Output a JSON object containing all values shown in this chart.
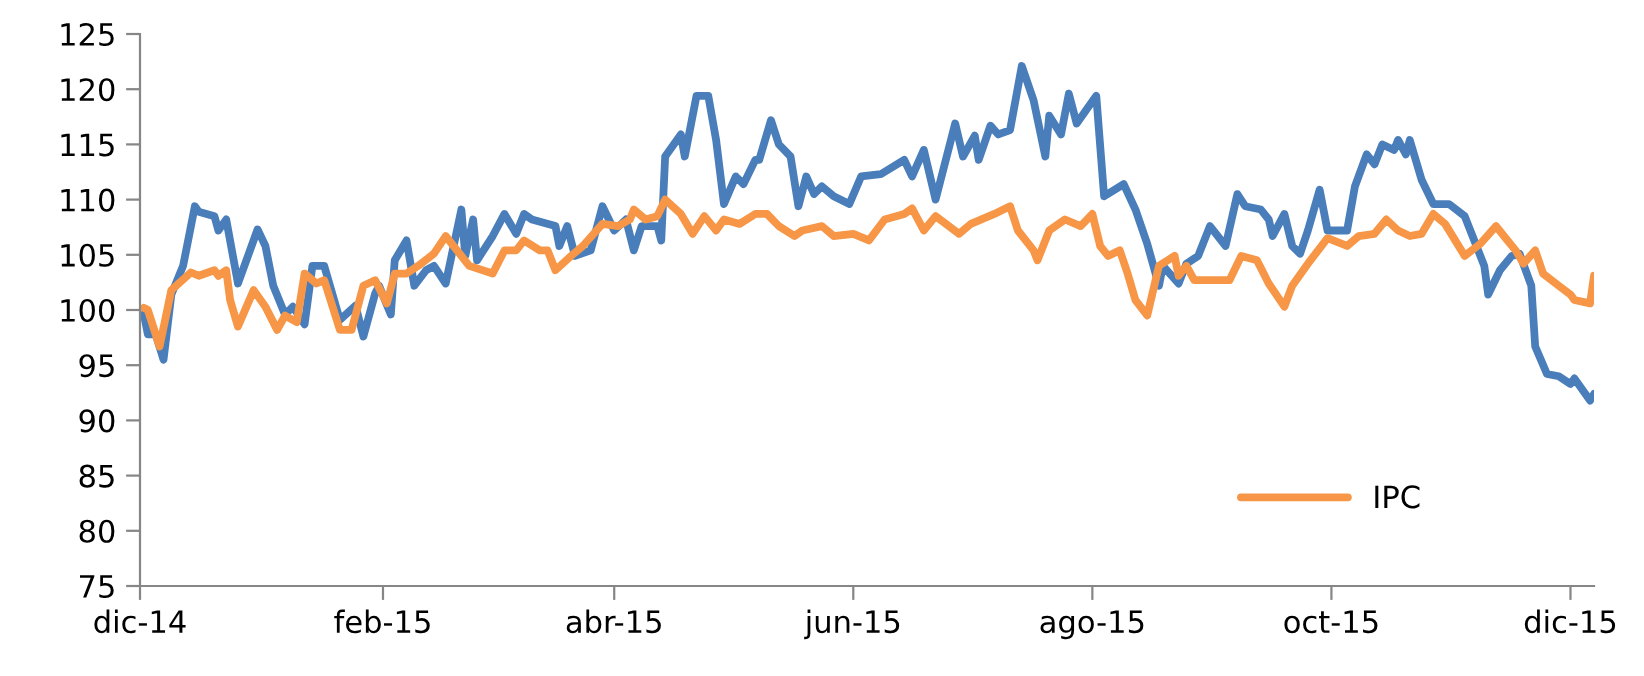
{
  "chart_data": {
    "type": "line",
    "legend": "bottom right",
    "grid": false,
    "marker": "none",
    "line_style": "solid",
    "xlim": [
      "2014-12-01",
      "2015-12-07"
    ],
    "xticks": [
      {
        "value": "2014-12-01",
        "label": "dic-14"
      },
      {
        "value": "2015-02-01",
        "label": "feb-15"
      },
      {
        "value": "2015-04-01",
        "label": "abr-15"
      },
      {
        "value": "2015-06-01",
        "label": "jun-15"
      },
      {
        "value": "2015-08-01",
        "label": "ago-15"
      },
      {
        "value": "2015-10-01",
        "label": "oct-15"
      },
      {
        "value": "2015-12-01",
        "label": "dic-15"
      }
    ],
    "ylim": [
      75,
      125
    ],
    "yticks": [
      75,
      80,
      85,
      90,
      95,
      100,
      105,
      110,
      115,
      120,
      125
    ],
    "series": [
      {
        "color": "#4a7ebb",
        "x": [
          "2014-12-02",
          "2014-12-03",
          "2014-12-05",
          "2014-12-07",
          "2014-12-09",
          "2014-12-12",
          "2014-12-15",
          "2014-12-16",
          "2014-12-20",
          "2014-12-21",
          "2014-12-23",
          "2014-12-26",
          "2014-12-31",
          "2015-01-02",
          "2015-01-04",
          "2015-01-07",
          "2015-01-09",
          "2015-01-12",
          "2015-01-14",
          "2015-01-17",
          "2015-01-21",
          "2015-01-25",
          "2015-01-27",
          "2015-01-30",
          "2015-01-31",
          "2015-02-03",
          "2015-02-04",
          "2015-02-07",
          "2015-02-09",
          "2015-02-12",
          "2015-02-14",
          "2015-02-17",
          "2015-02-21",
          "2015-02-22",
          "2015-02-24",
          "2015-02-25",
          "2015-03-01",
          "2015-03-04",
          "2015-03-07",
          "2015-03-09",
          "2015-03-11",
          "2015-03-17",
          "2015-03-18",
          "2015-03-20",
          "2015-03-22",
          "2015-03-26",
          "2015-03-29",
          "2015-04-01",
          "2015-04-04",
          "2015-04-06",
          "2015-04-08",
          "2015-04-12",
          "2015-04-13",
          "2015-04-14",
          "2015-04-18",
          "2015-04-19",
          "2015-04-22",
          "2015-04-25",
          "2015-04-27",
          "2015-04-29",
          "2015-05-02",
          "2015-05-04",
          "2015-05-07",
          "2015-05-08",
          "2015-05-11",
          "2015-05-13",
          "2015-05-16",
          "2015-05-18",
          "2015-05-20",
          "2015-05-22",
          "2015-05-24",
          "2015-05-27",
          "2015-05-31",
          "2015-06-03",
          "2015-06-08",
          "2015-06-14",
          "2015-06-16",
          "2015-06-19",
          "2015-06-22",
          "2015-06-27",
          "2015-06-29",
          "2015-07-02",
          "2015-07-03",
          "2015-07-06",
          "2015-07-08",
          "2015-07-11",
          "2015-07-14",
          "2015-07-17",
          "2015-07-20",
          "2015-07-21",
          "2015-07-24",
          "2015-07-26",
          "2015-07-28",
          "2015-08-02",
          "2015-08-04",
          "2015-08-09",
          "2015-08-12",
          "2015-08-15",
          "2015-08-18",
          "2015-08-19",
          "2015-08-23",
          "2015-08-25",
          "2015-08-28",
          "2015-08-31",
          "2015-09-04",
          "2015-09-07",
          "2015-09-09",
          "2015-09-13",
          "2015-09-15",
          "2015-09-16",
          "2015-09-19",
          "2015-09-21",
          "2015-09-23",
          "2015-09-25",
          "2015-09-28",
          "2015-09-30",
          "2015-10-05",
          "2015-10-07",
          "2015-10-10",
          "2015-10-12",
          "2015-10-14",
          "2015-10-17",
          "2015-10-18",
          "2015-10-20",
          "2015-10-21",
          "2015-10-24",
          "2015-10-27",
          "2015-10-31",
          "2015-11-04",
          "2015-11-06",
          "2015-11-09",
          "2015-11-10",
          "2015-11-13",
          "2015-11-16",
          "2015-11-18",
          "2015-11-21",
          "2015-11-22",
          "2015-11-25",
          "2015-11-28",
          "2015-12-01",
          "2015-12-02",
          "2015-12-06",
          "2015-12-07"
        ],
        "values": [
          99.6,
          97.8,
          97.8,
          95.5,
          101.4,
          104,
          109.4,
          108.9,
          108.5,
          107.2,
          108.2,
          102.4,
          107.3,
          105.8,
          102.2,
          99.6,
          100.3,
          98.7,
          104,
          104,
          99.1,
          100.4,
          97.6,
          101.5,
          102.2,
          99.6,
          104.5,
          106.3,
          102.2,
          103.6,
          104,
          102.4,
          109.1,
          104.9,
          108.2,
          104.5,
          106.7,
          108.7,
          106.9,
          108.7,
          108.2,
          107.6,
          105.8,
          107.6,
          104.9,
          105.4,
          109.4,
          107.2,
          108.2,
          105.4,
          107.6,
          107.6,
          106.3,
          113.9,
          115.9,
          113.9,
          119.4,
          119.4,
          115.4,
          109.6,
          112.1,
          111.4,
          113.6,
          113.6,
          117.2,
          115,
          113.9,
          109.4,
          112.1,
          110.5,
          111.2,
          110.3,
          109.6,
          112.1,
          112.3,
          113.6,
          112.1,
          114.5,
          110,
          116.9,
          113.9,
          115.8,
          113.6,
          116.7,
          115.9,
          116.3,
          122.1,
          119,
          113.9,
          117.6,
          115.9,
          119.6,
          116.9,
          119.4,
          110.3,
          111.4,
          109.1,
          106,
          102.2,
          104,
          102.4,
          104.2,
          104.9,
          107.6,
          105.8,
          110.5,
          109.4,
          109.1,
          108.2,
          106.7,
          108.7,
          105.8,
          105.1,
          107.2,
          110.9,
          107.2,
          107.2,
          111.2,
          114.1,
          113.2,
          115,
          114.5,
          115.4,
          114.1,
          115.4,
          111.8,
          109.6,
          109.6,
          108.5,
          106.7,
          104,
          101.4,
          103.6,
          104.9,
          105.1,
          102.2,
          96.7,
          94.2,
          94,
          93.3,
          93.8,
          91.8,
          92.4
        ]
      },
      {
        "name": "IPC",
        "color": "#f79646",
        "x": [
          "2014-12-02",
          "2014-12-03",
          "2014-12-06",
          "2014-12-09",
          "2014-12-14",
          "2014-12-16",
          "2014-12-20",
          "2014-12-21",
          "2014-12-23",
          "2014-12-24",
          "2014-12-26",
          "2014-12-30",
          "2015-01-02",
          "2015-01-05",
          "2015-01-07",
          "2015-01-10",
          "2015-01-12",
          "2015-01-15",
          "2015-01-17",
          "2015-01-21",
          "2015-01-24",
          "2015-01-27",
          "2015-01-30",
          "2015-02-02",
          "2015-02-04",
          "2015-02-07",
          "2015-02-10",
          "2015-02-14",
          "2015-02-17",
          "2015-02-19",
          "2015-02-23",
          "2015-03-01",
          "2015-03-04",
          "2015-03-07",
          "2015-03-09",
          "2015-03-13",
          "2015-03-15",
          "2015-03-17",
          "2015-03-21",
          "2015-03-24",
          "2015-03-29",
          "2015-04-02",
          "2015-04-05",
          "2015-04-06",
          "2015-04-09",
          "2015-04-12",
          "2015-04-14",
          "2015-04-18",
          "2015-04-21",
          "2015-04-24",
          "2015-04-27",
          "2015-04-29",
          "2015-05-03",
          "2015-05-07",
          "2015-05-10",
          "2015-05-13",
          "2015-05-17",
          "2015-05-19",
          "2015-05-24",
          "2015-05-27",
          "2015-06-01",
          "2015-06-05",
          "2015-06-09",
          "2015-06-14",
          "2015-06-16",
          "2015-06-19",
          "2015-06-22",
          "2015-06-28",
          "2015-07-01",
          "2015-07-07",
          "2015-07-11",
          "2015-07-13",
          "2015-07-17",
          "2015-07-18",
          "2015-07-21",
          "2015-07-25",
          "2015-07-29",
          "2015-08-01",
          "2015-08-03",
          "2015-08-05",
          "2015-08-08",
          "2015-08-10",
          "2015-08-12",
          "2015-08-15",
          "2015-08-18",
          "2015-08-22",
          "2015-08-23",
          "2015-08-25",
          "2015-08-27",
          "2015-09-01",
          "2015-09-05",
          "2015-09-08",
          "2015-09-12",
          "2015-09-15",
          "2015-09-19",
          "2015-09-21",
          "2015-09-25",
          "2015-09-30",
          "2015-10-05",
          "2015-10-08",
          "2015-10-12",
          "2015-10-15",
          "2015-10-18",
          "2015-10-21",
          "2015-10-24",
          "2015-10-27",
          "2015-10-30",
          "2015-11-04",
          "2015-11-08",
          "2015-11-12",
          "2015-11-14",
          "2015-11-17",
          "2015-11-19",
          "2015-11-22",
          "2015-11-24",
          "2015-11-28",
          "2015-12-01",
          "2015-12-02",
          "2015-12-06",
          "2015-12-07"
        ],
        "values": [
          100.2,
          100,
          96.7,
          101.8,
          103.4,
          103.1,
          103.6,
          103.1,
          103.6,
          100.9,
          98.5,
          101.8,
          100.3,
          98.2,
          99.5,
          98.9,
          103.3,
          102.4,
          102.7,
          98.2,
          98.2,
          102.2,
          102.7,
          100.6,
          103.3,
          103.3,
          104,
          105.1,
          106.7,
          105.8,
          104,
          103.3,
          105.4,
          105.4,
          106.3,
          105.4,
          105.4,
          103.6,
          104.9,
          105.8,
          107.8,
          107.6,
          108.2,
          109.1,
          108.2,
          108.5,
          110,
          108.7,
          106.9,
          108.5,
          107.2,
          108.2,
          107.8,
          108.7,
          108.7,
          107.6,
          106.7,
          107.2,
          107.6,
          106.7,
          106.9,
          106.3,
          108.2,
          108.7,
          109.2,
          107.2,
          108.5,
          106.9,
          107.8,
          108.7,
          109.4,
          107.2,
          105.4,
          104.5,
          107.2,
          108.2,
          107.6,
          108.7,
          105.8,
          104.9,
          105.4,
          103.3,
          100.9,
          99.5,
          104,
          104.9,
          103.1,
          104,
          102.7,
          102.7,
          102.7,
          104.9,
          104.5,
          102.4,
          100.3,
          102.2,
          104.2,
          106.5,
          105.8,
          106.7,
          106.9,
          108.2,
          107.2,
          106.7,
          106.9,
          108.7,
          107.8,
          104.9,
          106,
          107.6,
          106.7,
          105.4,
          104.2,
          105.4,
          103.3,
          102.2,
          101.4,
          100.9,
          100.6,
          103.1
        ]
      }
    ]
  }
}
